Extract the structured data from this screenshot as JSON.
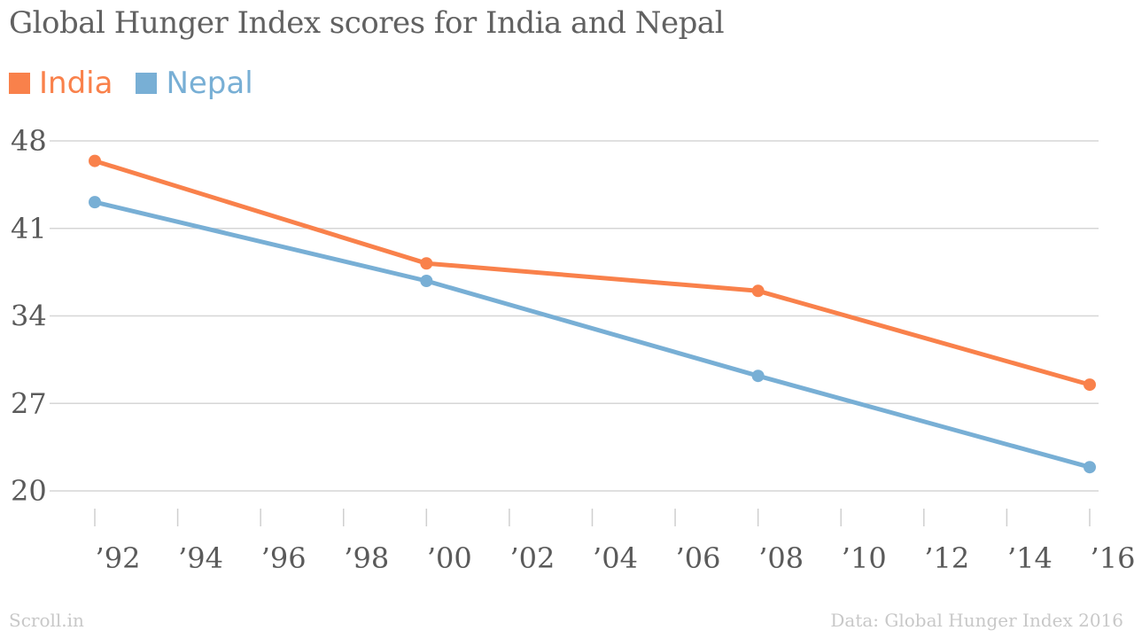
{
  "chart_data": {
    "type": "line",
    "title": "Global Hunger Index scores for India and Nepal",
    "xlabel": "",
    "ylabel": "",
    "xlim": [
      1992,
      2016
    ],
    "ylim": [
      20,
      48
    ],
    "yticks": [
      48,
      41,
      34,
      27,
      20
    ],
    "xticks": [
      {
        "year": 1992,
        "label": "’92"
      },
      {
        "year": 1994,
        "label": "’94"
      },
      {
        "year": 1996,
        "label": "’96"
      },
      {
        "year": 1998,
        "label": "’98"
      },
      {
        "year": 2000,
        "label": "’00"
      },
      {
        "year": 2002,
        "label": "’02"
      },
      {
        "year": 2004,
        "label": "’04"
      },
      {
        "year": 2006,
        "label": "’06"
      },
      {
        "year": 2008,
        "label": "’08"
      },
      {
        "year": 2010,
        "label": "’10"
      },
      {
        "year": 2012,
        "label": "’12"
      },
      {
        "year": 2014,
        "label": "’14"
      },
      {
        "year": 2016,
        "label": "’16"
      }
    ],
    "grid": true,
    "legend_position": "top-left",
    "series": [
      {
        "name": "India",
        "color": "#f9814b",
        "points": [
          {
            "x": 1992,
            "y": 46.4
          },
          {
            "x": 2000,
            "y": 38.2
          },
          {
            "x": 2008,
            "y": 36.0
          },
          {
            "x": 2016,
            "y": 28.5
          }
        ]
      },
      {
        "name": "Nepal",
        "color": "#78afd5",
        "points": [
          {
            "x": 1992,
            "y": 43.1
          },
          {
            "x": 2000,
            "y": 36.8
          },
          {
            "x": 2008,
            "y": 29.2
          },
          {
            "x": 2016,
            "y": 21.9
          }
        ]
      }
    ]
  },
  "footer": {
    "source_left": "Scroll.in",
    "source_right": "Data: Global Hunger Index 2016"
  }
}
